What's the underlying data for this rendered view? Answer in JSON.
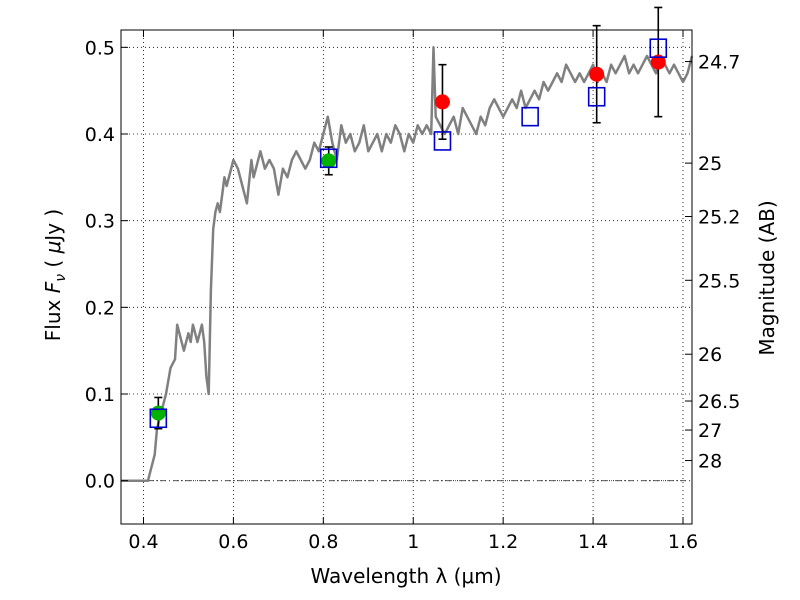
{
  "chart_data": {
    "type": "scatter",
    "xlabel": "Wavelength  λ (μm)",
    "ylabel_parts": {
      "a": "Flux  ",
      "b": "F",
      "c": "ν",
      "d": "  ( ",
      "e": "μ",
      "f": "Jy )"
    },
    "y2label": "Magnitude (AB)",
    "xlim": [
      0.35,
      1.62
    ],
    "ylim": [
      -0.05,
      0.52
    ],
    "x_ticks": [
      0.4,
      0.6,
      0.8,
      1.0,
      1.2,
      1.4,
      1.6
    ],
    "x_tick_labels": [
      "0.4",
      "0.6",
      "0.8",
      "1",
      "1.2",
      "1.4",
      "1.6"
    ],
    "y_ticks": [
      0.0,
      0.1,
      0.2,
      0.3,
      0.4,
      0.5
    ],
    "y_tick_labels": [
      "0.0",
      "0.1",
      "0.2",
      "0.3",
      "0.4",
      "0.5"
    ],
    "magnitude_ticks": [
      {
        "label": "24.7",
        "flux": 0.4836
      },
      {
        "label": "25",
        "flux": 0.3664
      },
      {
        "label": "25.2",
        "flux": 0.3048
      },
      {
        "label": "25.5",
        "flux": 0.2312
      },
      {
        "label": "26",
        "flux": 0.1459
      },
      {
        "label": "26.5",
        "flux": 0.0919
      },
      {
        "label": "27",
        "flux": 0.0584
      },
      {
        "label": "28",
        "flux": 0.0232
      }
    ],
    "grid": true,
    "zero_line": true,
    "colors": {
      "spectrum": "#808080",
      "green_points": "#00b200",
      "red_points": "#ff0000",
      "model_boxes": "#0000cc",
      "error_bars": "#000000"
    },
    "series": [
      {
        "kind": "line",
        "x": [
          0.35,
          0.41,
          0.415,
          0.425,
          0.43,
          0.44,
          0.45,
          0.46,
          0.47,
          0.475,
          0.48,
          0.49,
          0.5,
          0.505,
          0.51,
          0.515,
          0.52,
          0.525,
          0.53,
          0.535,
          0.54,
          0.545,
          0.55,
          0.555,
          0.56,
          0.565,
          0.57,
          0.575,
          0.58,
          0.585,
          0.59,
          0.6,
          0.61,
          0.62,
          0.63,
          0.64,
          0.645,
          0.65,
          0.66,
          0.67,
          0.68,
          0.69,
          0.7,
          0.71,
          0.72,
          0.73,
          0.74,
          0.75,
          0.76,
          0.77,
          0.78,
          0.79,
          0.8,
          0.81,
          0.82,
          0.83,
          0.84,
          0.85,
          0.86,
          0.87,
          0.88,
          0.89,
          0.9,
          0.91,
          0.92,
          0.93,
          0.94,
          0.95,
          0.96,
          0.97,
          0.98,
          0.99,
          1.0,
          1.01,
          1.02,
          1.03,
          1.04,
          1.045,
          1.05,
          1.06,
          1.07,
          1.08,
          1.09,
          1.1,
          1.11,
          1.12,
          1.13,
          1.14,
          1.15,
          1.16,
          1.17,
          1.18,
          1.19,
          1.2,
          1.21,
          1.22,
          1.23,
          1.24,
          1.25,
          1.26,
          1.27,
          1.28,
          1.29,
          1.3,
          1.31,
          1.32,
          1.33,
          1.34,
          1.35,
          1.36,
          1.37,
          1.38,
          1.39,
          1.4,
          1.41,
          1.42,
          1.43,
          1.44,
          1.45,
          1.46,
          1.47,
          1.48,
          1.49,
          1.5,
          1.51,
          1.52,
          1.53,
          1.54,
          1.55,
          1.56,
          1.57,
          1.58,
          1.59,
          1.6,
          1.61,
          1.62
        ],
        "y": [
          0.0,
          0.0,
          0.01,
          0.03,
          0.06,
          0.08,
          0.1,
          0.13,
          0.14,
          0.18,
          0.17,
          0.15,
          0.17,
          0.16,
          0.18,
          0.17,
          0.16,
          0.17,
          0.18,
          0.16,
          0.12,
          0.1,
          0.22,
          0.29,
          0.31,
          0.32,
          0.31,
          0.33,
          0.35,
          0.34,
          0.35,
          0.37,
          0.36,
          0.34,
          0.32,
          0.37,
          0.35,
          0.36,
          0.38,
          0.36,
          0.37,
          0.36,
          0.33,
          0.36,
          0.35,
          0.37,
          0.38,
          0.37,
          0.36,
          0.37,
          0.39,
          0.38,
          0.4,
          0.42,
          0.39,
          0.37,
          0.41,
          0.39,
          0.4,
          0.38,
          0.39,
          0.41,
          0.38,
          0.39,
          0.4,
          0.38,
          0.4,
          0.39,
          0.41,
          0.4,
          0.38,
          0.4,
          0.39,
          0.41,
          0.4,
          0.41,
          0.4,
          0.5,
          0.42,
          0.41,
          0.4,
          0.41,
          0.42,
          0.4,
          0.43,
          0.42,
          0.41,
          0.4,
          0.42,
          0.41,
          0.43,
          0.44,
          0.43,
          0.42,
          0.43,
          0.44,
          0.43,
          0.45,
          0.43,
          0.44,
          0.45,
          0.44,
          0.46,
          0.45,
          0.46,
          0.47,
          0.46,
          0.48,
          0.47,
          0.46,
          0.47,
          0.46,
          0.47,
          0.48,
          0.46,
          0.47,
          0.46,
          0.48,
          0.47,
          0.48,
          0.49,
          0.47,
          0.48,
          0.47,
          0.48,
          0.49,
          0.48,
          0.47,
          0.49,
          0.48,
          0.47,
          0.48,
          0.47,
          0.46,
          0.47,
          0.49
        ]
      },
      {
        "kind": "points",
        "color_key": "green_points",
        "x": [
          0.433,
          0.812
        ],
        "y": [
          0.078,
          0.369
        ],
        "yerr": [
          0.018,
          0.016
        ]
      },
      {
        "kind": "points",
        "color_key": "red_points",
        "x": [
          1.065,
          1.408,
          1.545
        ],
        "y": [
          0.437,
          0.469,
          0.483
        ],
        "yerr": [
          0.043,
          0.056,
          0.063
        ]
      },
      {
        "kind": "boxes",
        "color_key": "model_boxes",
        "x": [
          0.433,
          0.812,
          1.065,
          1.26,
          1.408,
          1.545
        ],
        "y": [
          0.072,
          0.372,
          0.392,
          0.42,
          0.443,
          0.499
        ]
      }
    ]
  }
}
